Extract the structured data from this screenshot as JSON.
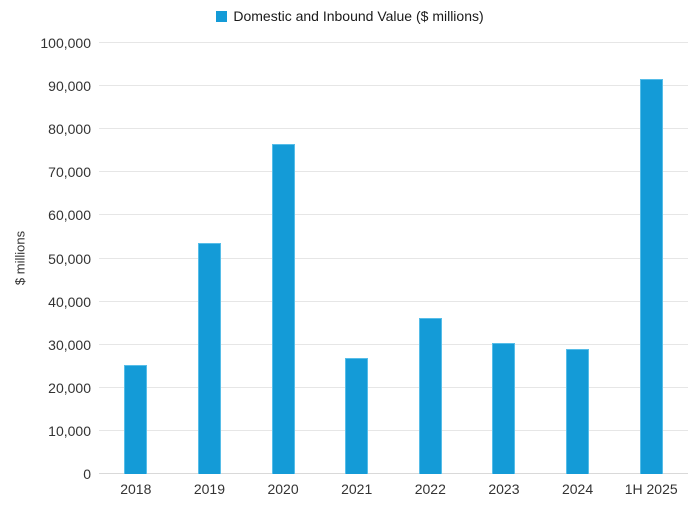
{
  "legend": {
    "label": "Domestic and Inbound Value ($ millions)"
  },
  "chart_data": {
    "type": "bar",
    "title": "",
    "series_name": "Domestic and Inbound Value ($ millions)",
    "categories": [
      "2018",
      "2019",
      "2020",
      "2021",
      "2022",
      "2023",
      "2024",
      "1H 2025"
    ],
    "values": [
      25300,
      53500,
      76500,
      27000,
      36300,
      30500,
      29000,
      91600
    ],
    "xlabel": "",
    "ylabel": "$ millions",
    "ylim": [
      0,
      100000
    ],
    "ytick_step": 10000,
    "grid": true,
    "legend_position": "top-center",
    "bar_color": "#149BD7",
    "bar_border_color": "#56BDE8",
    "gridline_color": "#E6E6E6",
    "axis_line_color": "#D9D9D9",
    "text_color": "#333333"
  }
}
